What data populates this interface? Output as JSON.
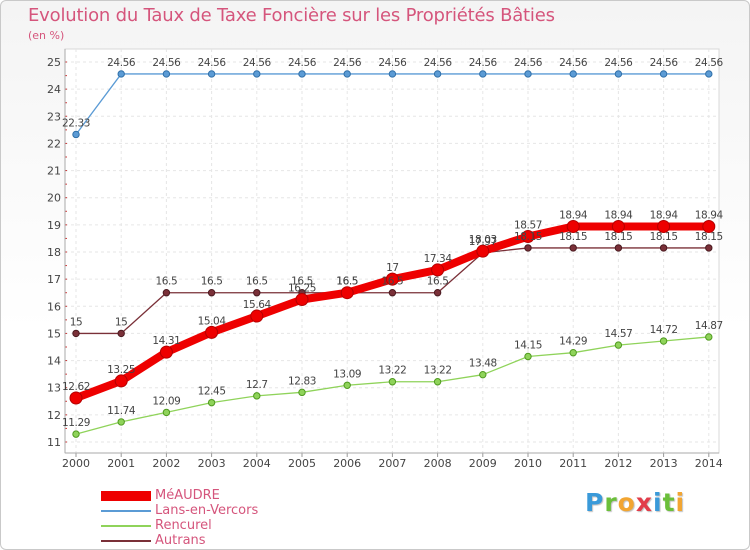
{
  "header": {
    "title": "Evolution du Taux de Taxe Foncière sur les Propriétés Bâties",
    "unit": "(en %)"
  },
  "logo": {
    "letters": [
      "P",
      "r",
      "o",
      "x",
      "i",
      "t",
      "i"
    ],
    "colors": [
      "#3a9ad9",
      "#6bbf3a",
      "#f2a531",
      "#e23d4a",
      "#3a9ad9",
      "#6bbf3a",
      "#f2a531"
    ]
  },
  "chart_data": {
    "type": "line",
    "title": "Evolution du Taux de Taxe Foncière sur les Propriétés Bâties",
    "ylabel": "(en %)",
    "xlabel": "",
    "ylim": [
      11,
      25
    ],
    "yticks": [
      11,
      12,
      13,
      14,
      15,
      16,
      17,
      18,
      19,
      20,
      21,
      22,
      23,
      24,
      25
    ],
    "grid": true,
    "legend_position": "bottom-left",
    "categories": [
      "2000",
      "2001",
      "2002",
      "2003",
      "2004",
      "2005",
      "2006",
      "2007",
      "2008",
      "2009",
      "2010",
      "2011",
      "2012",
      "2013",
      "2014"
    ],
    "series": [
      {
        "name": "Lans-en-Vercors",
        "color": "#5b9bd5",
        "values": [
          22.33,
          24.56,
          24.56,
          24.56,
          24.56,
          24.56,
          24.56,
          24.56,
          24.56,
          24.56,
          24.56,
          24.56,
          24.56,
          24.56,
          24.56
        ],
        "labels": [
          "22.33",
          "24.56",
          "24.56",
          "24.56",
          "24.56",
          "24.56",
          "24.56",
          "24.56",
          "24.56",
          "24.56",
          "24.56",
          "24.56",
          "24.56",
          "24.56",
          "24.56"
        ]
      },
      {
        "name": "Rencurel",
        "color": "#8fd35a",
        "values": [
          11.29,
          11.74,
          12.09,
          12.45,
          12.7,
          12.83,
          13.09,
          13.22,
          13.22,
          13.48,
          14.15,
          14.29,
          14.57,
          14.72,
          14.87
        ],
        "labels": [
          "11.29",
          "11.74",
          "12.09",
          "12.45",
          "12.7",
          "12.83",
          "13.09",
          "13.22",
          "13.22",
          "13.48",
          "14.15",
          "14.29",
          "14.57",
          "14.72",
          "14.87"
        ]
      },
      {
        "name": "Autrans",
        "color": "#7a3038",
        "values": [
          15,
          15,
          16.5,
          16.5,
          16.5,
          16.5,
          16.5,
          16.5,
          16.5,
          17.97,
          18.15,
          18.15,
          18.15,
          18.15,
          18.15
        ],
        "labels": [
          "15",
          "15",
          "16.5",
          "16.5",
          "16.5",
          "16.5",
          "16.5",
          "16.5",
          "16.5",
          "17.97",
          "18.15",
          "18.15",
          "18.15",
          "18.15",
          "18.15"
        ]
      },
      {
        "name": "MéAUDRE",
        "color": "#ee0000",
        "values": [
          12.62,
          13.25,
          14.31,
          15.04,
          15.64,
          16.25,
          16.5,
          17,
          17.34,
          18.03,
          18.57,
          18.94,
          18.94,
          18.94,
          18.94
        ],
        "labels": [
          "12.62",
          "13.25",
          "14.31",
          "15.04",
          "15.64",
          "16.25",
          "16.5",
          "17",
          "17.34",
          "18.03",
          "18.57",
          "18.94",
          "18.94",
          "18.94",
          "18.94"
        ]
      }
    ],
    "legend": [
      {
        "name": "MéAUDRE",
        "color": "#ee0000"
      },
      {
        "name": "Lans-en-Vercors",
        "color": "#5b9bd5"
      },
      {
        "name": "Rencurel",
        "color": "#8fd35a"
      },
      {
        "name": "Autrans",
        "color": "#7a3038"
      }
    ]
  }
}
